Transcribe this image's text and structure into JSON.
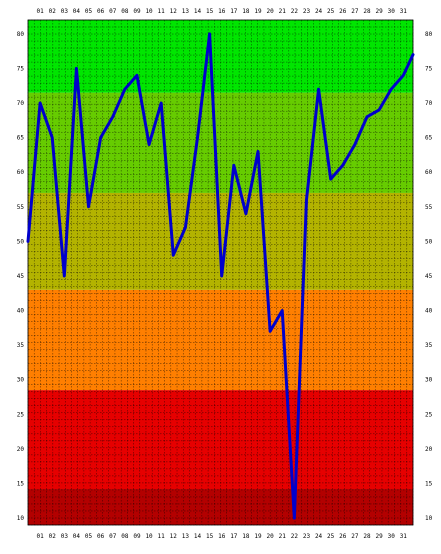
{
  "chart_data": {
    "type": "line",
    "title": "",
    "xlabel": "",
    "ylabel": "",
    "x": [
      "01",
      "02",
      "03",
      "04",
      "05",
      "06",
      "07",
      "08",
      "09",
      "10",
      "11",
      "12",
      "13",
      "14",
      "15",
      "16",
      "17",
      "18",
      "19",
      "20",
      "21",
      "22",
      "23",
      "24",
      "25",
      "26",
      "27",
      "28",
      "29",
      "30",
      "31"
    ],
    "series": [
      {
        "color": "#0000cc",
        "points": [
          {
            "x": 0.0,
            "y": 50
          },
          {
            "x": 1,
            "y": 70
          },
          {
            "x": 2,
            "y": 65
          },
          {
            "x": 3,
            "y": 45
          },
          {
            "x": 4,
            "y": 75
          },
          {
            "x": 5,
            "y": 55
          },
          {
            "x": 6,
            "y": 65
          },
          {
            "x": 7,
            "y": 68
          },
          {
            "x": 8,
            "y": 72
          },
          {
            "x": 9,
            "y": 74
          },
          {
            "x": 10,
            "y": 64
          },
          {
            "x": 11,
            "y": 70
          },
          {
            "x": 12,
            "y": 48
          },
          {
            "x": 13,
            "y": 52
          },
          {
            "x": 14,
            "y": 65
          },
          {
            "x": 15,
            "y": 80
          },
          {
            "x": 16,
            "y": 45
          },
          {
            "x": 17,
            "y": 61
          },
          {
            "x": 18,
            "y": 54
          },
          {
            "x": 19,
            "y": 63
          },
          {
            "x": 20,
            "y": 37
          },
          {
            "x": 21,
            "y": 40
          },
          {
            "x": 22,
            "y": 10
          },
          {
            "x": 23,
            "y": 56
          },
          {
            "x": 24,
            "y": 72
          },
          {
            "x": 25,
            "y": 59
          },
          {
            "x": 26,
            "y": 61
          },
          {
            "x": 27,
            "y": 64
          },
          {
            "x": 28,
            "y": 68
          },
          {
            "x": 29,
            "y": 69
          },
          {
            "x": 30,
            "y": 72
          },
          {
            "x": 31,
            "y": 74
          },
          {
            "x": 31.8,
            "y": 77
          }
        ]
      }
    ],
    "y_ticks": [
      "10",
      "15",
      "20",
      "25",
      "30",
      "35",
      "40",
      "45",
      "50",
      "55",
      "60",
      "65",
      "70",
      "75",
      "80"
    ],
    "ylim": [
      9,
      82
    ],
    "xlim": [
      0,
      31.8
    ],
    "grid": true,
    "bands": [
      {
        "from": 9,
        "to": 14.2,
        "color": "#b30000"
      },
      {
        "from": 14.2,
        "to": 28.5,
        "color": "#e60000"
      },
      {
        "from": 28.5,
        "to": 43,
        "color": "#ff7f00"
      },
      {
        "from": 43,
        "to": 57,
        "color": "#b3b300"
      },
      {
        "from": 57,
        "to": 71.5,
        "color": "#66cc00"
      },
      {
        "from": 71.5,
        "to": 82,
        "color": "#00e600"
      }
    ]
  }
}
